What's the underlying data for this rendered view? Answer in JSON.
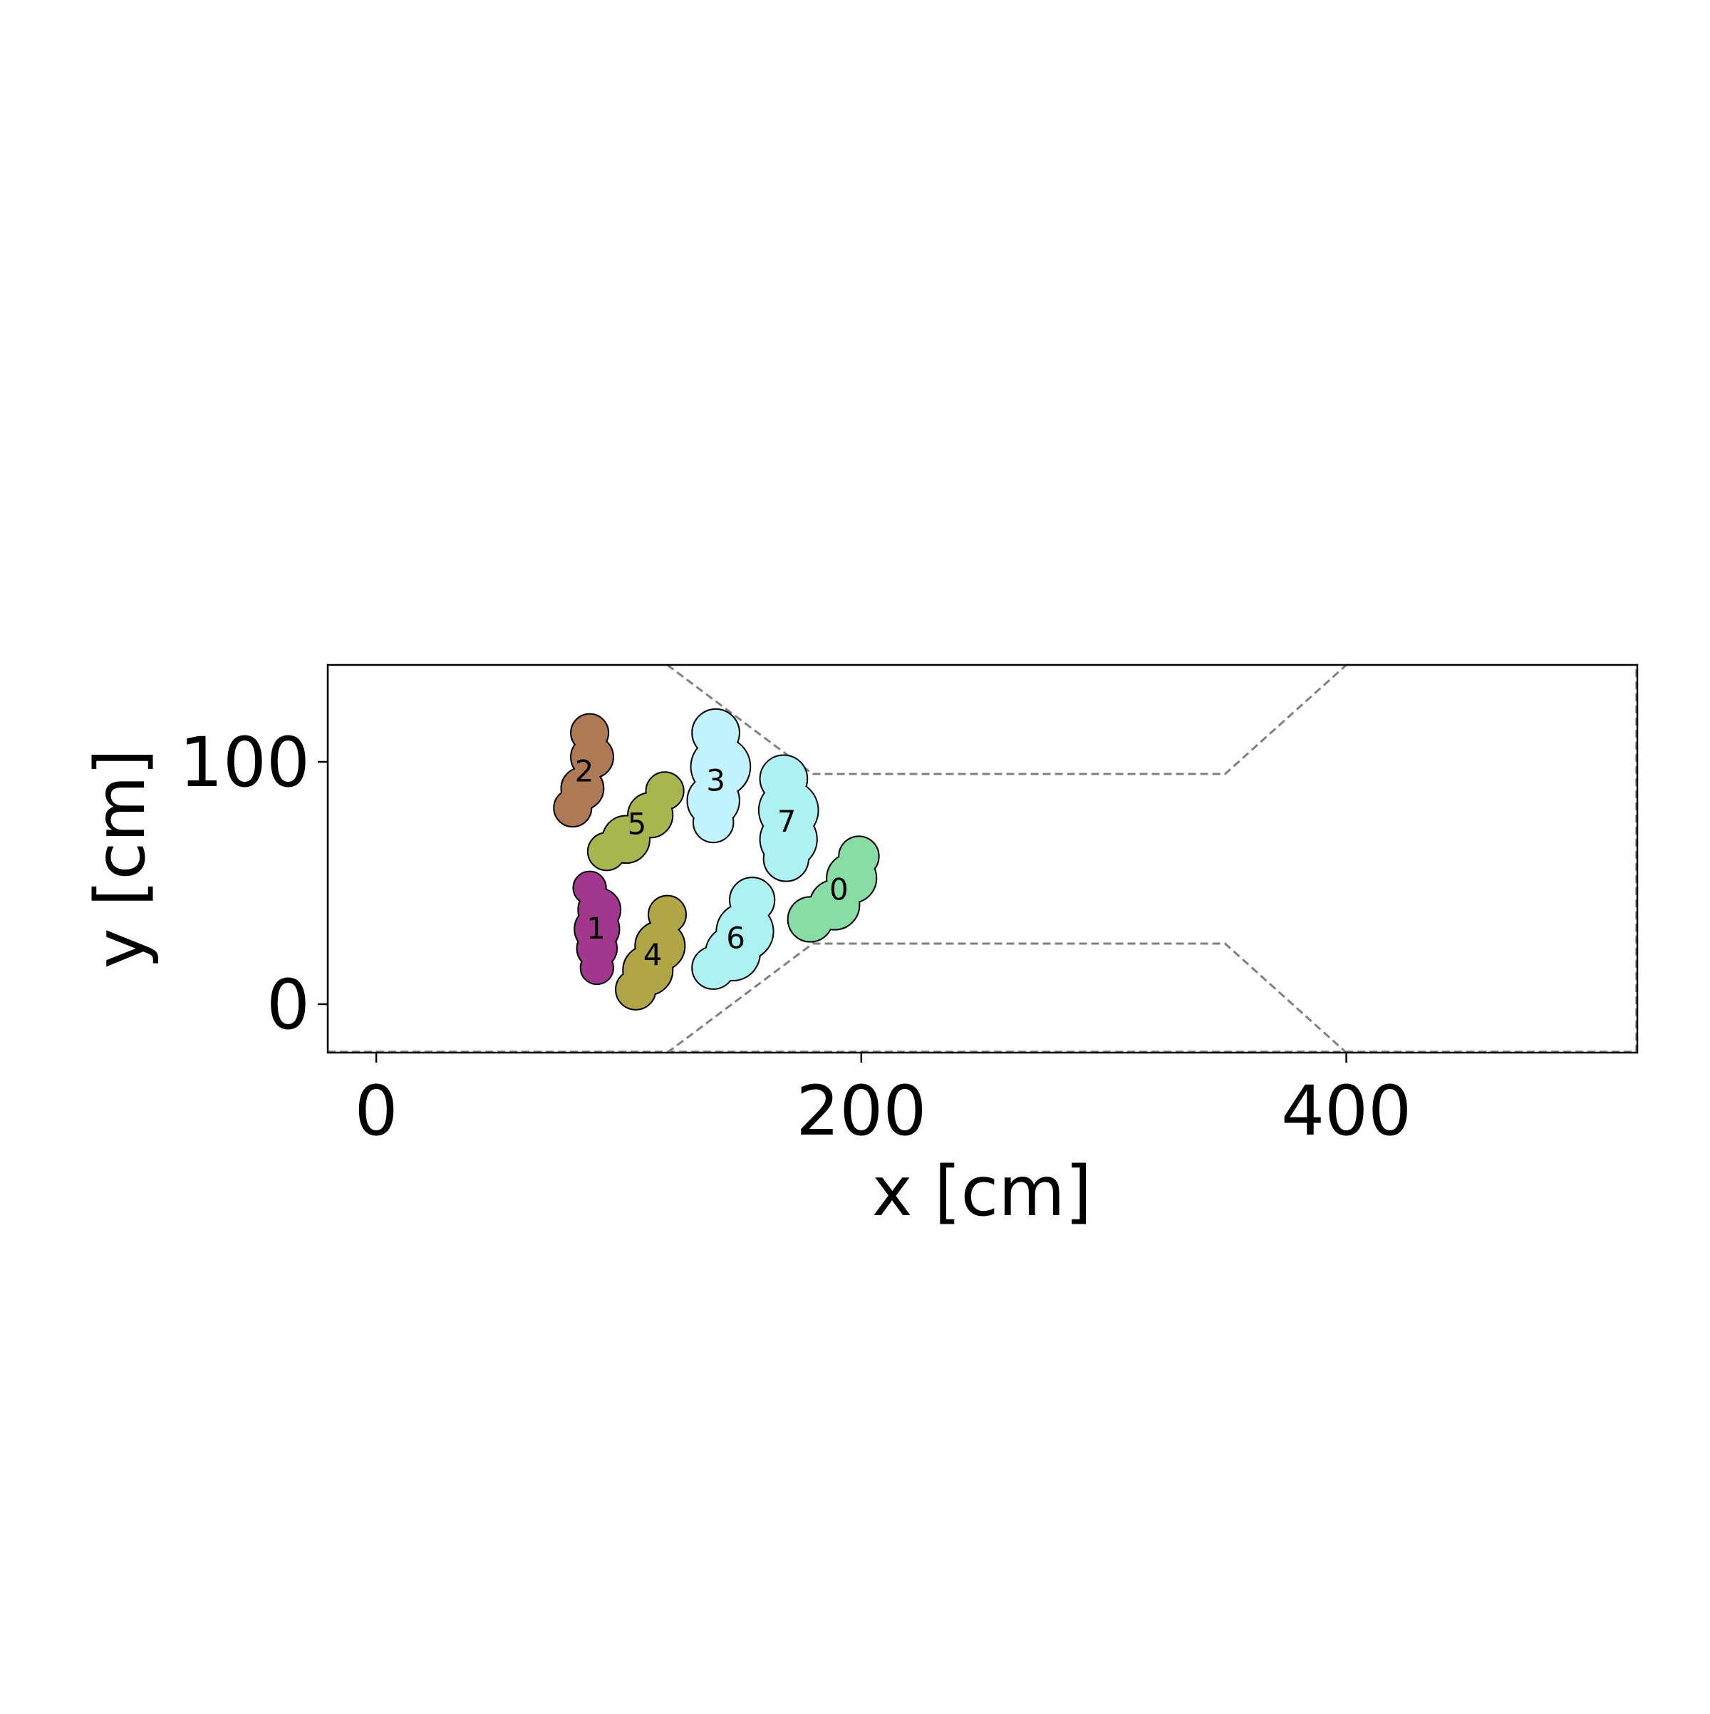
{
  "chart_data": {
    "type": "scatter",
    "title": "",
    "xlabel": "x [cm]",
    "ylabel": "y [cm]",
    "xlim": [
      -20,
      520
    ],
    "ylim": [
      -20,
      140
    ],
    "xticks": [
      0,
      200,
      400
    ],
    "yticks": [
      0,
      100
    ],
    "grid": false,
    "corridor": {
      "upper": [
        [
          120,
          140
        ],
        [
          180,
          95
        ],
        [
          350,
          95
        ],
        [
          400,
          140
        ]
      ],
      "lower": [
        [
          120,
          -20
        ],
        [
          180,
          25
        ],
        [
          350,
          25
        ],
        [
          400,
          -20
        ]
      ],
      "line_color": "#808080",
      "line_style": "dashed"
    },
    "agents": [
      {
        "label": "0",
        "color": "#88dda4",
        "circles": [
          [
            179,
            35,
            9
          ],
          [
            189,
            41,
            10
          ],
          [
            196,
            52,
            10
          ],
          [
            199,
            61,
            8
          ]
        ]
      },
      {
        "label": "1",
        "color": "#a2388e",
        "circles": [
          [
            88,
            48,
            6.5
          ],
          [
            92,
            39,
            8.5
          ],
          [
            91,
            31,
            9
          ],
          [
            91,
            23,
            8
          ],
          [
            91,
            15,
            6.5
          ]
        ]
      },
      {
        "label": "2",
        "color": "#ad7a55",
        "circles": [
          [
            88,
            112,
            7.5
          ],
          [
            89,
            102,
            8.5
          ],
          [
            85,
            89,
            8.5
          ],
          [
            81,
            81,
            7.5
          ]
        ]
      },
      {
        "label": "3",
        "color": "#c2f2fb",
        "circles": [
          [
            140,
            112,
            9.5
          ],
          [
            142,
            98,
            12
          ],
          [
            139,
            84,
            10.5
          ],
          [
            139,
            75,
            8
          ]
        ]
      },
      {
        "label": "4",
        "color": "#b0a647",
        "circles": [
          [
            120,
            37,
            7.5
          ],
          [
            117,
            24,
            10
          ],
          [
            112,
            14,
            10
          ],
          [
            107,
            6,
            8
          ]
        ]
      },
      {
        "label": "5",
        "color": "#a9b54f",
        "circles": [
          [
            119,
            88,
            7.5
          ],
          [
            113,
            78,
            9
          ],
          [
            103,
            68,
            9.5
          ],
          [
            95,
            63,
            7.5
          ]
        ]
      },
      {
        "label": "6",
        "color": "#aef1f3",
        "circles": [
          [
            155,
            43,
            9
          ],
          [
            152,
            30,
            11.5
          ],
          [
            147,
            21,
            11
          ],
          [
            139,
            15,
            8.5
          ]
        ]
      },
      {
        "label": "7",
        "color": "#aef1f3",
        "circles": [
          [
            168,
            93,
            9.5
          ],
          [
            170,
            80,
            12
          ],
          [
            170,
            68,
            11.5
          ],
          [
            169,
            60,
            9
          ]
        ]
      }
    ]
  }
}
